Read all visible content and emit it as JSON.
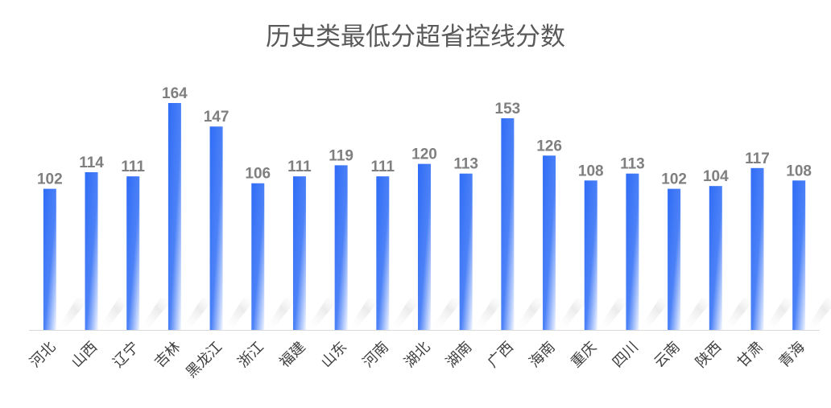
{
  "chart_data": {
    "type": "bar",
    "title": "历史类最低分超省控线分数",
    "xlabel": "",
    "ylabel": "",
    "ylim": [
      0,
      180
    ],
    "grid": false,
    "legend": "none",
    "categories": [
      "河北",
      "山西",
      "辽宁",
      "吉林",
      "黑龙江",
      "浙江",
      "福建",
      "山东",
      "河南",
      "湖北",
      "湖南",
      "广西",
      "海南",
      "重庆",
      "四川",
      "云南",
      "陕西",
      "甘肃",
      "青海"
    ],
    "series": [
      {
        "values": [
          102,
          114,
          111,
          164,
          147,
          106,
          111,
          119,
          111,
          120,
          113,
          153,
          126,
          108,
          113,
          102,
          104,
          117,
          108
        ]
      }
    ],
    "colors": {
      "bar_top": "#2f6cf6",
      "bar_bottom": "#f2f6ff",
      "label": "#7f7f7f",
      "axis": "#d9d9d9"
    }
  }
}
